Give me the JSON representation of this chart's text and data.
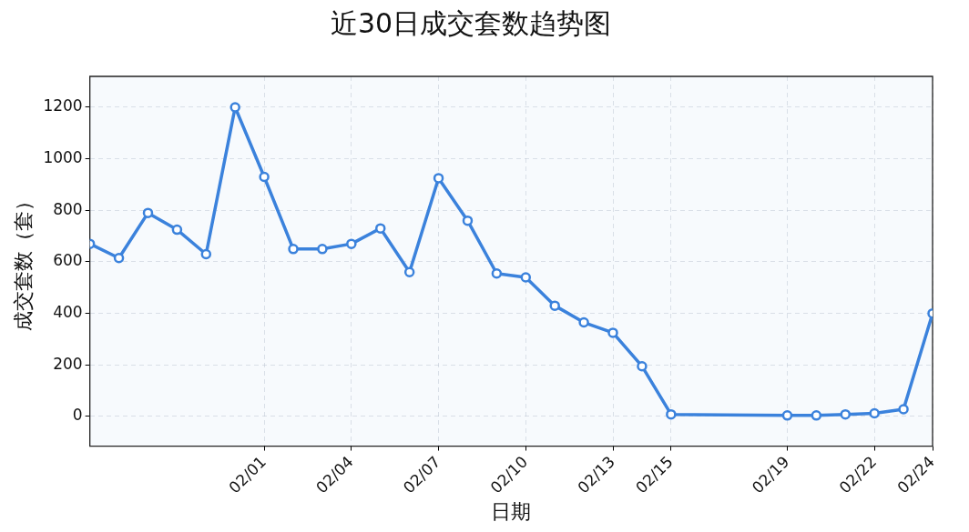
{
  "chart_data": {
    "type": "line",
    "title": "近30日成交套数趋势图",
    "xlabel": "日期",
    "ylabel": "成交套数（套）",
    "x": [
      "--01-26",
      "--01-27",
      "--01-28",
      "--01-29",
      "--01-30",
      "--01-31",
      "--02-01",
      "--02-02",
      "--02-03",
      "--02-04",
      "--02-05",
      "--02-06",
      "--02-07",
      "--02-08",
      "--02-09",
      "--02-10",
      "--02-11",
      "--02-12",
      "--02-13",
      "--02-14",
      "--02-15",
      "--02-19",
      "--02-20",
      "--02-21",
      "--02-22",
      "--02-23",
      "--02-24"
    ],
    "series": [
      {
        "color": "#3b82dc",
        "values": [
          670,
          615,
          790,
          725,
          630,
          1200,
          930,
          650,
          650,
          670,
          730,
          560,
          925,
          760,
          555,
          540,
          430,
          365,
          325,
          195,
          8,
          4,
          4,
          8,
          12,
          28,
          400
        ]
      }
    ],
    "xlim": [
      "--01-26",
      "--02-24"
    ],
    "xticks": [
      {
        "value": "--02-01",
        "label": "02/01"
      },
      {
        "value": "--02-04",
        "label": "02/04"
      },
      {
        "value": "--02-07",
        "label": "02/07"
      },
      {
        "value": "--02-10",
        "label": "02/10"
      },
      {
        "value": "--02-13",
        "label": "02/13"
      },
      {
        "value": "--02-15",
        "label": "02/15"
      },
      {
        "value": "--02-19",
        "label": "02/19"
      },
      {
        "value": "--02-22",
        "label": "02/22"
      },
      {
        "value": "--02-24",
        "label": "02/24"
      }
    ],
    "ylim": [
      -115,
      1320
    ],
    "yticks": [
      0,
      200,
      400,
      600,
      800,
      1000,
      1200
    ],
    "grid": true,
    "legend": false,
    "marker": "circle",
    "line_style": "solid"
  }
}
